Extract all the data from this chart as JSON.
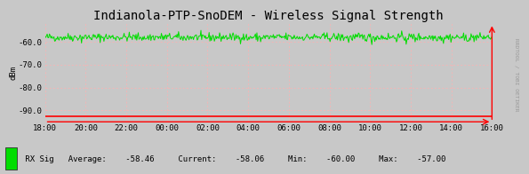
{
  "title": "Indianola-PTP-SnoDEM - Wireless Signal Strength",
  "ylabel": "dBm",
  "background_color": "#c8c8c8",
  "plot_bg_color": "#c8c8c8",
  "grid_color_major": "#ff0000",
  "grid_color_minor": "#ffb0b0",
  "line_color": "#00dd00",
  "ylim": [
    -95,
    -52
  ],
  "yticks": [
    -90.0,
    -80.0,
    -70.0,
    -60.0
  ],
  "x_labels": [
    "18:00",
    "20:00",
    "22:00",
    "00:00",
    "02:00",
    "04:00",
    "06:00",
    "08:00",
    "10:00",
    "12:00",
    "14:00",
    "16:00"
  ],
  "signal_mean": -58.0,
  "signal_std": 0.9,
  "legend_label": "RX Sig",
  "avg": "-58.46",
  "current": "-58.06",
  "min": "-60.00",
  "max": "-57.00",
  "right_label": "RRDTOOL / TOBI OETIKER",
  "title_fontsize": 10,
  "axis_fontsize": 6.5,
  "legend_fontsize": 6.5,
  "watermark_fontsize": 4.5
}
